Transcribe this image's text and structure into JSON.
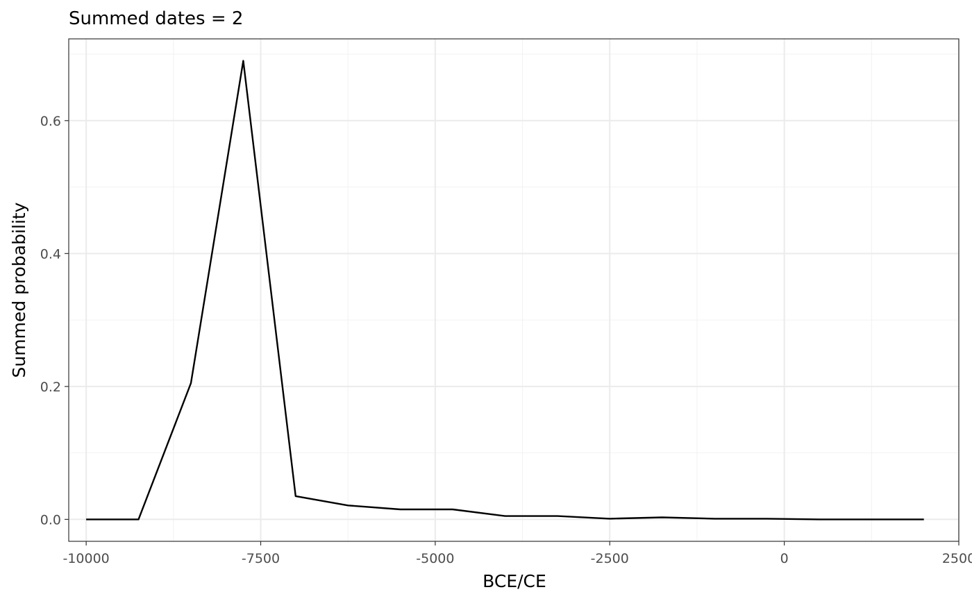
{
  "chart_data": {
    "type": "line",
    "title": "Summed dates =  2",
    "xlabel": "BCE/CE",
    "ylabel": "Summed probability",
    "xlim": [
      -10250,
      2500
    ],
    "ylim": [
      -0.033,
      0.723
    ],
    "x_ticks": [
      -10000,
      -7500,
      -5000,
      -2500,
      0,
      2500
    ],
    "x_tick_labels": [
      "-10000",
      "-7500",
      "-5000",
      "-2500",
      "0",
      "2500"
    ],
    "y_ticks": [
      0.0,
      0.2,
      0.4,
      0.6
    ],
    "y_tick_labels": [
      "0.0",
      "0.2",
      "0.4",
      "0.6"
    ],
    "grid": true,
    "series": [
      {
        "color": "#000000",
        "x": [
          -10000,
          -9250,
          -8500,
          -7750,
          -7000,
          -6250,
          -5500,
          -4750,
          -4000,
          -3250,
          -2500,
          -1750,
          -1000,
          -250,
          500,
          1250,
          2000
        ],
        "y": [
          0.0,
          0.0,
          0.205,
          0.69,
          0.035,
          0.021,
          0.015,
          0.015,
          0.005,
          0.005,
          0.001,
          0.003,
          0.001,
          0.001,
          0.0,
          0.0,
          0.0
        ]
      }
    ]
  }
}
